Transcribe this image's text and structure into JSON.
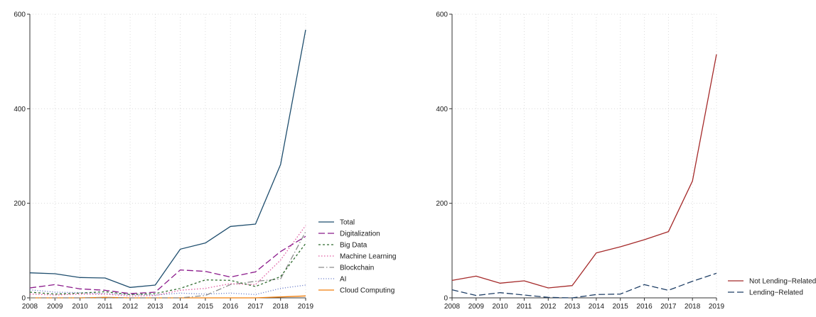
{
  "chart_data": [
    {
      "type": "line",
      "x": [
        2008,
        2009,
        2010,
        2011,
        2012,
        2013,
        2014,
        2015,
        2016,
        2017,
        2018,
        2019
      ],
      "ylim": [
        0,
        600
      ],
      "yticks": [
        0,
        200,
        400,
        600
      ],
      "grid": true,
      "legend_position": "right",
      "series": [
        {
          "name": "Total",
          "color": "#1f4e6e",
          "dash": "solid",
          "values": [
            53,
            51,
            43,
            42,
            22,
            27,
            103,
            116,
            151,
            156,
            282,
            567
          ]
        },
        {
          "name": "Digitalization",
          "color": "#8b1a8b",
          "dash": "longdash",
          "values": [
            21,
            28,
            19,
            16,
            9,
            12,
            59,
            56,
            44,
            55,
            98,
            130
          ]
        },
        {
          "name": "Big Data",
          "color": "#2e6b2e",
          "dash": "shortdash",
          "values": [
            12,
            8,
            10,
            13,
            7,
            9,
            20,
            38,
            37,
            24,
            45,
            115
          ]
        },
        {
          "name": "Machine Learning",
          "color": "#e05aa0",
          "dash": "dot",
          "values": [
            8,
            6,
            8,
            8,
            4,
            5,
            16,
            20,
            30,
            28,
            80,
            153
          ]
        },
        {
          "name": "Blockchain",
          "color": "#8c8c8c",
          "dash": "dashdot",
          "values": [
            0,
            0,
            0,
            0,
            0,
            0,
            0,
            5,
            28,
            35,
            40,
            140
          ]
        },
        {
          "name": "AI",
          "color": "#5a6fc4",
          "dash": "finedot",
          "values": [
            17,
            12,
            11,
            9,
            7,
            6,
            10,
            8,
            10,
            7,
            20,
            27
          ]
        },
        {
          "name": "Cloud Computing",
          "color": "#f07d0a",
          "dash": "solid",
          "values": [
            0,
            0,
            0,
            1,
            0,
            0,
            0,
            0,
            0,
            0,
            2,
            4
          ]
        }
      ]
    },
    {
      "type": "line",
      "x": [
        2008,
        2009,
        2010,
        2011,
        2012,
        2013,
        2014,
        2015,
        2016,
        2017,
        2018,
        2019
      ],
      "ylim": [
        0,
        600
      ],
      "yticks": [
        0,
        200,
        400,
        600
      ],
      "grid": true,
      "legend_position": "right",
      "series": [
        {
          "name": "Not Lending−Related",
          "color": "#a52a2a",
          "dash": "solid",
          "values": [
            37,
            46,
            31,
            36,
            21,
            26,
            95,
            108,
            123,
            140,
            247,
            515
          ]
        },
        {
          "name": "Lending−Related",
          "color": "#1f3f66",
          "dash": "longdash",
          "values": [
            17,
            5,
            11,
            6,
            1,
            0,
            7,
            8,
            28,
            16,
            35,
            52
          ]
        }
      ]
    }
  ]
}
